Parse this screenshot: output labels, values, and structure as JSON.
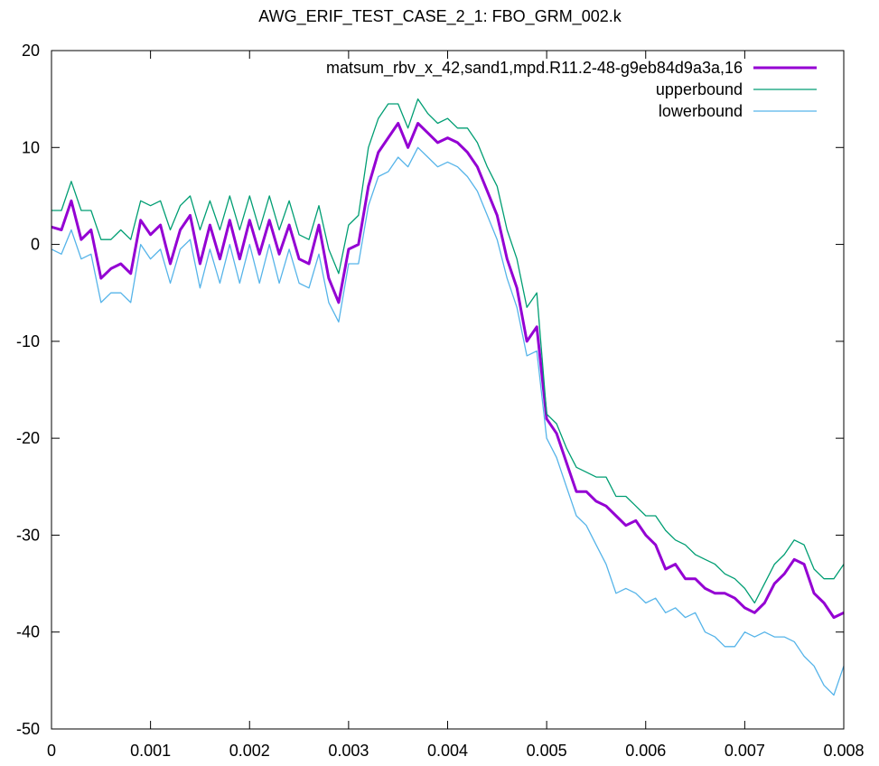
{
  "chart_data": {
    "type": "line",
    "title": "AWG_ERIF_TEST_CASE_2_1: FBO_GRM_002.k",
    "xlabel": "",
    "ylabel": "",
    "xlim": [
      0,
      0.008
    ],
    "ylim": [
      -50,
      20
    ],
    "x_ticks": [
      "0",
      "0.001",
      "0.002",
      "0.003",
      "0.004",
      "0.005",
      "0.006",
      "0.007",
      "0.008"
    ],
    "y_ticks": [
      "20",
      "10",
      "0",
      "-10",
      "-20",
      "-30",
      "-40",
      "-50"
    ],
    "grid": false,
    "legend_position": "top-right",
    "series": [
      {
        "name": "matsum_rbv_x_42,sand1,mpd.R11.2-48-g9eb84d9a3a,16",
        "color": "#9400d3",
        "x": [
          0,
          0.0001,
          0.0002,
          0.0003,
          0.0004,
          0.0005,
          0.0006,
          0.0007,
          0.0008,
          0.0009,
          0.001,
          0.0011,
          0.0012,
          0.0013,
          0.0014,
          0.0015,
          0.0016,
          0.0017,
          0.0018,
          0.0019,
          0.002,
          0.0021,
          0.0022,
          0.0023,
          0.0024,
          0.0025,
          0.0026,
          0.0027,
          0.0028,
          0.0029,
          0.003,
          0.0031,
          0.0032,
          0.0033,
          0.0034,
          0.0035,
          0.0036,
          0.0037,
          0.0038,
          0.0039,
          0.004,
          0.0041,
          0.0042,
          0.0043,
          0.0044,
          0.0045,
          0.0046,
          0.0047,
          0.0048,
          0.0049,
          0.005,
          0.0051,
          0.0052,
          0.0053,
          0.0054,
          0.0055,
          0.0056,
          0.0057,
          0.0058,
          0.0059,
          0.006,
          0.0061,
          0.0062,
          0.0063,
          0.0064,
          0.0065,
          0.0066,
          0.0067,
          0.0068,
          0.0069,
          0.007,
          0.0071,
          0.0072,
          0.0073,
          0.0074,
          0.0075,
          0.0076,
          0.0077,
          0.0078,
          0.0079,
          0.008
        ],
        "y": [
          1.8,
          1.5,
          4.5,
          0.5,
          1.5,
          -3.5,
          -2.5,
          -2.0,
          -3.0,
          2.5,
          1.0,
          2.0,
          -2.0,
          1.5,
          3.0,
          -2.0,
          2.0,
          -1.5,
          2.5,
          -1.5,
          2.5,
          -1.0,
          2.5,
          -1.0,
          2.0,
          -1.5,
          -2.0,
          2.0,
          -3.5,
          -6.0,
          -0.5,
          0.0,
          6.0,
          9.5,
          11.0,
          12.5,
          10.0,
          12.5,
          11.5,
          10.5,
          11.0,
          10.5,
          9.5,
          8.0,
          5.5,
          3.0,
          -1.5,
          -4.5,
          -10.0,
          -8.5,
          -18.0,
          -19.5,
          -22.5,
          -25.5,
          -25.5,
          -26.5,
          -27.0,
          -28.0,
          -29.0,
          -28.5,
          -30.0,
          -31.0,
          -33.5,
          -33.0,
          -34.5,
          -34.5,
          -35.5,
          -36.0,
          -36.0,
          -36.5,
          -37.5,
          -38.0,
          -37.0,
          -35.0,
          -34.0,
          -32.5,
          -33.0,
          -36.0,
          -37.0,
          -38.5,
          -38.0
        ]
      },
      {
        "name": "upperbound",
        "color": "#009e73",
        "x": [
          0,
          0.0001,
          0.0002,
          0.0003,
          0.0004,
          0.0005,
          0.0006,
          0.0007,
          0.0008,
          0.0009,
          0.001,
          0.0011,
          0.0012,
          0.0013,
          0.0014,
          0.0015,
          0.0016,
          0.0017,
          0.0018,
          0.0019,
          0.002,
          0.0021,
          0.0022,
          0.0023,
          0.0024,
          0.0025,
          0.0026,
          0.0027,
          0.0028,
          0.0029,
          0.003,
          0.0031,
          0.0032,
          0.0033,
          0.0034,
          0.0035,
          0.0036,
          0.0037,
          0.0038,
          0.0039,
          0.004,
          0.0041,
          0.0042,
          0.0043,
          0.0044,
          0.0045,
          0.0046,
          0.0047,
          0.0048,
          0.0049,
          0.005,
          0.0051,
          0.0052,
          0.0053,
          0.0054,
          0.0055,
          0.0056,
          0.0057,
          0.0058,
          0.0059,
          0.006,
          0.0061,
          0.0062,
          0.0063,
          0.0064,
          0.0065,
          0.0066,
          0.0067,
          0.0068,
          0.0069,
          0.007,
          0.0071,
          0.0072,
          0.0073,
          0.0074,
          0.0075,
          0.0076,
          0.0077,
          0.0078,
          0.0079,
          0.008
        ],
        "y": [
          3.5,
          3.5,
          6.5,
          3.5,
          3.5,
          0.5,
          0.5,
          1.5,
          0.5,
          4.5,
          4.0,
          4.5,
          1.5,
          4.0,
          5.0,
          1.5,
          4.5,
          1.5,
          5.0,
          1.5,
          5.0,
          1.5,
          5.0,
          1.5,
          4.5,
          1.0,
          0.5,
          4.0,
          -0.5,
          -3.0,
          2.0,
          3.0,
          10.0,
          13.0,
          14.5,
          14.5,
          12.0,
          15.0,
          13.5,
          12.5,
          13.0,
          12.0,
          12.0,
          10.5,
          8.0,
          6.0,
          1.5,
          -1.5,
          -6.5,
          -5.0,
          -17.5,
          -18.5,
          -21.0,
          -23.0,
          -23.5,
          -24.0,
          -24.0,
          -26.0,
          -26.0,
          -27.0,
          -28.0,
          -28.0,
          -29.5,
          -30.5,
          -31.0,
          -32.0,
          -32.5,
          -33.0,
          -34.0,
          -34.5,
          -35.5,
          -37.0,
          -35.0,
          -33.0,
          -32.0,
          -30.5,
          -31.0,
          -33.5,
          -34.5,
          -34.5,
          -33.0
        ]
      },
      {
        "name": "lowerbound",
        "color": "#56b4e9",
        "x": [
          0,
          0.0001,
          0.0002,
          0.0003,
          0.0004,
          0.0005,
          0.0006,
          0.0007,
          0.0008,
          0.0009,
          0.001,
          0.0011,
          0.0012,
          0.0013,
          0.0014,
          0.0015,
          0.0016,
          0.0017,
          0.0018,
          0.0019,
          0.002,
          0.0021,
          0.0022,
          0.0023,
          0.0024,
          0.0025,
          0.0026,
          0.0027,
          0.0028,
          0.0029,
          0.003,
          0.0031,
          0.0032,
          0.0033,
          0.0034,
          0.0035,
          0.0036,
          0.0037,
          0.0038,
          0.0039,
          0.004,
          0.0041,
          0.0042,
          0.0043,
          0.0044,
          0.0045,
          0.0046,
          0.0047,
          0.0048,
          0.0049,
          0.005,
          0.0051,
          0.0052,
          0.0053,
          0.0054,
          0.0055,
          0.0056,
          0.0057,
          0.0058,
          0.0059,
          0.006,
          0.0061,
          0.0062,
          0.0063,
          0.0064,
          0.0065,
          0.0066,
          0.0067,
          0.0068,
          0.0069,
          0.007,
          0.0071,
          0.0072,
          0.0073,
          0.0074,
          0.0075,
          0.0076,
          0.0077,
          0.0078,
          0.0079,
          0.008
        ],
        "y": [
          -0.5,
          -1.0,
          1.5,
          -1.5,
          -1.0,
          -6.0,
          -5.0,
          -5.0,
          -6.0,
          0.0,
          -1.5,
          -0.5,
          -4.0,
          -0.5,
          0.5,
          -4.5,
          -0.5,
          -4.0,
          0.0,
          -4.0,
          0.0,
          -4.0,
          0.0,
          -4.0,
          -0.5,
          -4.0,
          -4.5,
          -1.0,
          -6.0,
          -8.0,
          -2.0,
          -2.0,
          4.0,
          7.0,
          7.5,
          9.0,
          8.0,
          10.0,
          9.0,
          8.0,
          8.5,
          8.0,
          7.0,
          5.5,
          3.0,
          0.5,
          -3.5,
          -6.5,
          -11.5,
          -11.0,
          -20.0,
          -22.0,
          -25.0,
          -28.0,
          -29.0,
          -31.0,
          -33.0,
          -36.0,
          -35.5,
          -36.0,
          -37.0,
          -36.5,
          -38.0,
          -37.5,
          -38.5,
          -38.0,
          -40.0,
          -40.5,
          -41.5,
          -41.5,
          -40.0,
          -40.5,
          -40.0,
          -40.5,
          -40.5,
          -41.0,
          -42.5,
          -43.5,
          -45.5,
          -46.5,
          -43.5
        ]
      }
    ]
  }
}
